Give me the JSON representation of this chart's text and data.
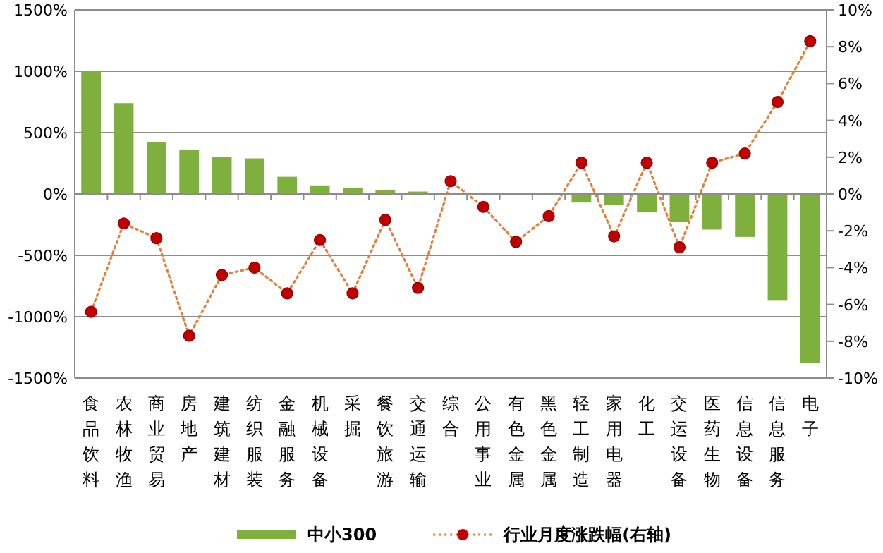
{
  "chart_data": {
    "type": "bar",
    "categories": [
      "食品饮料",
      "农林牧渔",
      "商业贸易",
      "房地产",
      "建筑建材",
      "纺织服装",
      "金融服务",
      "机械设备",
      "采掘",
      "餐饮旅游",
      "交通运输",
      "综合",
      "公用事业",
      "有色金属",
      "黑色金属",
      "轻工制造",
      "家用电器",
      "化工",
      "交运设备",
      "医药生物",
      "信息设备",
      "信息服务",
      "电子"
    ],
    "series": [
      {
        "name": "中小300",
        "color": "#7faf3c",
        "values": [
          1000,
          740,
          420,
          360,
          300,
          290,
          140,
          70,
          50,
          30,
          20,
          null,
          -10,
          -10,
          -10,
          -70,
          -90,
          -150,
          -230,
          -290,
          -350,
          -870,
          -1380
        ]
      },
      {
        "name": "行业月度涨跌幅(右轴)",
        "type": "line",
        "axis": "y2",
        "color": "#c00000",
        "marker": "circle",
        "line_style": "dotted",
        "values": [
          -6.4,
          -1.6,
          -2.4,
          -7.7,
          -4.4,
          -4.0,
          -5.4,
          -2.5,
          -5.4,
          -1.4,
          -5.1,
          0.7,
          -0.7,
          -2.6,
          -1.2,
          1.7,
          -2.3,
          1.7,
          -2.9,
          1.7,
          2.2,
          5.0,
          8.3
        ]
      }
    ],
    "ylim": [
      -1500,
      1500
    ],
    "yticks": [
      {
        "value": -1500,
        "label": "-1500%"
      },
      {
        "value": -1000,
        "label": "-1000%"
      },
      {
        "value": -500,
        "label": "-500%"
      },
      {
        "value": 0,
        "label": "0%"
      },
      {
        "value": 500,
        "label": "500%"
      },
      {
        "value": 1000,
        "label": "1000%"
      },
      {
        "value": 1500,
        "label": "1500%"
      }
    ],
    "y2lim": [
      -10,
      10
    ],
    "y2ticks": [
      {
        "value": -10,
        "label": "-10%"
      },
      {
        "value": -8,
        "label": "-8%"
      },
      {
        "value": -6,
        "label": "-6%"
      },
      {
        "value": -4,
        "label": "-4%"
      },
      {
        "value": -2,
        "label": "-2%"
      },
      {
        "value": 0,
        "label": "0%"
      },
      {
        "value": 2,
        "label": "2%"
      },
      {
        "value": 4,
        "label": "4%"
      },
      {
        "value": 6,
        "label": "6%"
      },
      {
        "value": 8,
        "label": "8%"
      },
      {
        "value": 10,
        "label": "10%"
      }
    ],
    "grid": "y",
    "legend": "bottom"
  }
}
